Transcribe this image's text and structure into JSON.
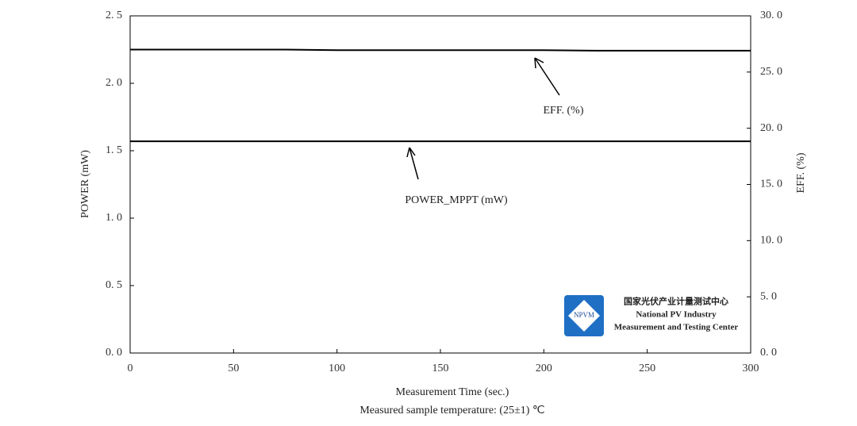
{
  "chart_data": {
    "type": "line",
    "x_label": "Measurement Time (sec.)",
    "note": "Measured sample temperature: (25±1) ℃",
    "y_label": "POWER (mW)",
    "y2_label": "EFF. (%)",
    "x": [
      0,
      25,
      50,
      75,
      100,
      125,
      150,
      175,
      200,
      225,
      250,
      275,
      300
    ],
    "series": [
      {
        "name": "POWER_MPPT (mW)",
        "color": "#000000",
        "axis": "y",
        "values": [
          1.57,
          1.57,
          1.57,
          1.57,
          1.57,
          1.57,
          1.57,
          1.57,
          1.57,
          1.57,
          1.57,
          1.57,
          1.57
        ]
      },
      {
        "name": "EFF. (%)",
        "color": "#000000",
        "axis": "y2",
        "values": [
          27.0,
          27.0,
          27.0,
          27.0,
          26.95,
          26.95,
          26.95,
          26.95,
          26.95,
          26.9,
          26.9,
          26.9,
          26.9
        ]
      }
    ],
    "xlim": [
      0,
      300
    ],
    "xticks": [
      0,
      50,
      100,
      150,
      200,
      250,
      300
    ],
    "ylim": [
      0,
      2.5
    ],
    "yticks": [
      {
        "value": 0,
        "label": "0. 0"
      },
      {
        "value": 0.5,
        "label": "0. 5"
      },
      {
        "value": 1,
        "label": "1. 0"
      },
      {
        "value": 1.5,
        "label": "1. 5"
      },
      {
        "value": 2,
        "label": "2. 0"
      },
      {
        "value": 2.5,
        "label": "2. 5"
      }
    ],
    "y2lim": [
      0,
      30
    ],
    "y2ticks": [
      {
        "value": 0,
        "label": "0. 0"
      },
      {
        "value": 5,
        "label": "5. 0"
      },
      {
        "value": 10,
        "label": "10. 0"
      },
      {
        "value": 15,
        "label": "15. 0"
      },
      {
        "value": 20,
        "label": "20. 0"
      },
      {
        "value": 25,
        "label": "25. 0"
      },
      {
        "value": 30,
        "label": "30. 0"
      }
    ],
    "logo": {
      "badge": "NPVM",
      "lines": [
        "国家光伏产业计量测试中心",
        "National PV Industry",
        "Measurement and Testing Center"
      ]
    }
  }
}
